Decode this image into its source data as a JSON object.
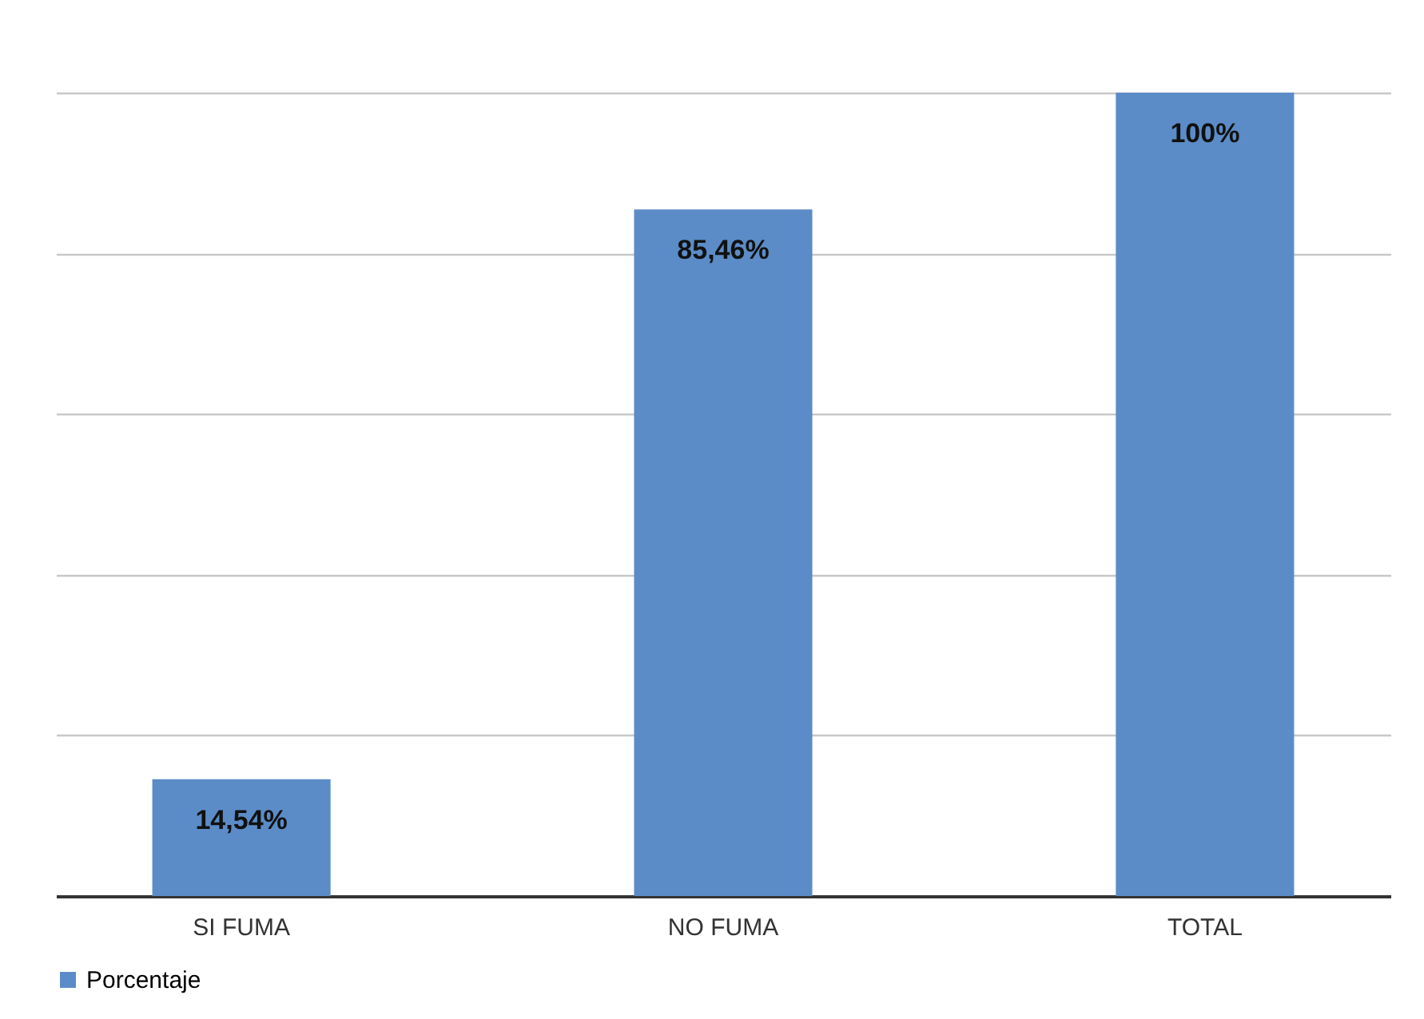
{
  "chart_data": {
    "type": "bar",
    "categories": [
      "SI FUMA",
      "NO FUMA",
      "TOTAL"
    ],
    "series": [
      {
        "name": "Porcentaje",
        "color": "#5b8cc7",
        "values": [
          14.54,
          85.46,
          100
        ],
        "value_labels": [
          "14,54%",
          "85,46%",
          "100%"
        ]
      }
    ],
    "ylim": [
      0,
      100
    ],
    "yticks": [
      {
        "value": 0,
        "label": null
      },
      {
        "value": 20,
        "label": null
      },
      {
        "value": 40,
        "label": null
      },
      {
        "value": 60,
        "label": null
      },
      {
        "value": 80,
        "label": null
      },
      {
        "value": 100,
        "label": null
      }
    ],
    "tick_labels": "x",
    "grid": "y",
    "legend": "bottom"
  }
}
